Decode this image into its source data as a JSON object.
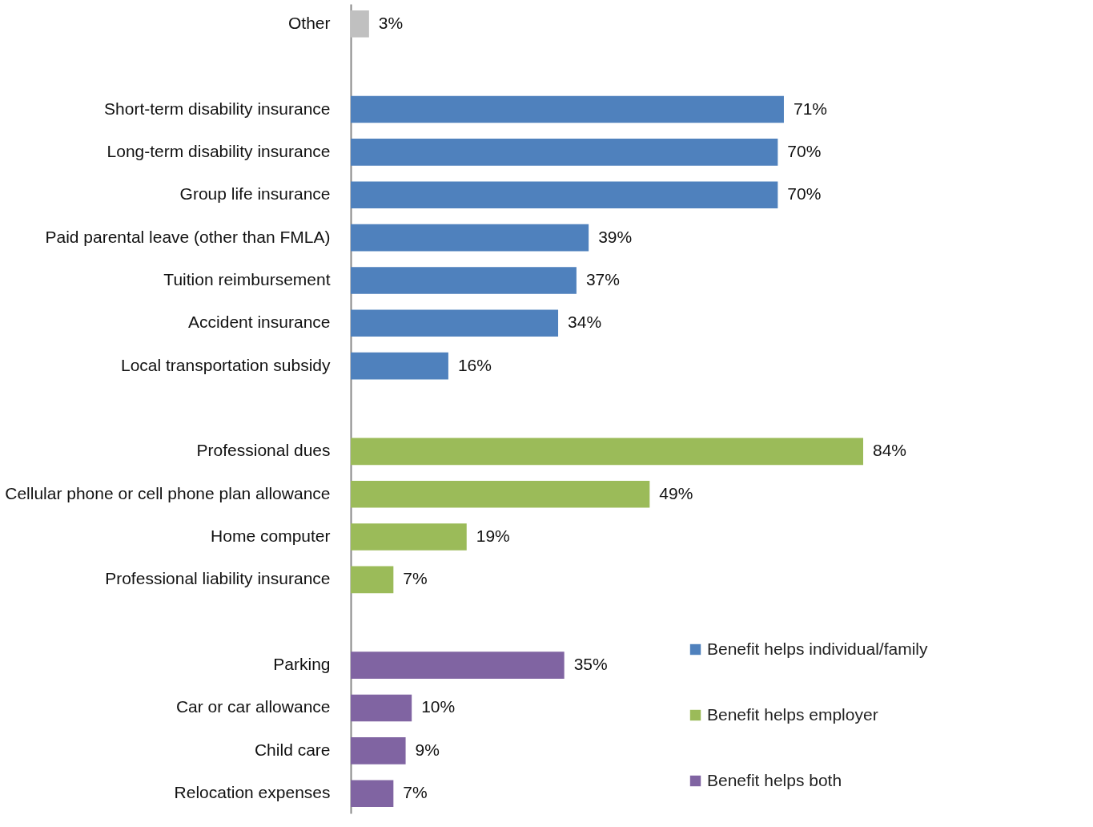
{
  "chart_data": {
    "type": "bar",
    "orientation": "horizontal",
    "categories": [
      "Other",
      null,
      "Short-term disability insurance",
      "Long-term disability insurance",
      "Group life insurance",
      "Paid parental leave (other than FMLA)",
      "Tuition reimbursement",
      "Accident insurance",
      "Local transportation subsidy",
      null,
      "Professional dues",
      "Cellular phone or cell phone plan allowance",
      "Home computer",
      "Professional liability insurance",
      null,
      "Parking",
      "Car or car allowance",
      "Child care",
      "Relocation expenses"
    ],
    "series": [
      {
        "color": "#c0c0c0",
        "values": [
          3,
          null,
          null,
          null,
          null,
          null,
          null,
          null,
          null,
          null,
          null,
          null,
          null,
          null,
          null,
          null,
          null,
          null,
          null
        ],
        "value_labels": [
          "3%",
          null,
          null,
          null,
          null,
          null,
          null,
          null,
          null,
          null,
          null,
          null,
          null,
          null,
          null,
          null,
          null,
          null,
          null
        ]
      },
      {
        "name": "Benefit helps individual/family",
        "color": "#4f81bd",
        "values": [
          null,
          null,
          71,
          70,
          70,
          39,
          37,
          34,
          16,
          null,
          null,
          null,
          null,
          null,
          null,
          null,
          null,
          null,
          null
        ],
        "value_labels": [
          null,
          null,
          "71%",
          "70%",
          "70%",
          "39%",
          "37%",
          "34%",
          "16%",
          null,
          null,
          null,
          null,
          null,
          null,
          null,
          null,
          null,
          null
        ]
      },
      {
        "name": "Benefit helps employer",
        "color": "#9bbb59",
        "values": [
          null,
          null,
          null,
          null,
          null,
          null,
          null,
          null,
          null,
          null,
          84,
          49,
          19,
          7,
          null,
          null,
          null,
          null,
          null
        ],
        "value_labels": [
          null,
          null,
          null,
          null,
          null,
          null,
          null,
          null,
          null,
          null,
          "84%",
          "49%",
          "19%",
          "7%",
          null,
          null,
          null,
          null,
          null
        ]
      },
      {
        "name": "Benefit helps both",
        "color": "#8064a2",
        "values": [
          null,
          null,
          null,
          null,
          null,
          null,
          null,
          null,
          null,
          null,
          null,
          null,
          null,
          null,
          null,
          35,
          10,
          9,
          7
        ],
        "value_labels": [
          null,
          null,
          null,
          null,
          null,
          null,
          null,
          null,
          null,
          null,
          null,
          null,
          null,
          null,
          null,
          "35%",
          "10%",
          "9%",
          "7%"
        ]
      }
    ],
    "legend": "bottom right"
  }
}
